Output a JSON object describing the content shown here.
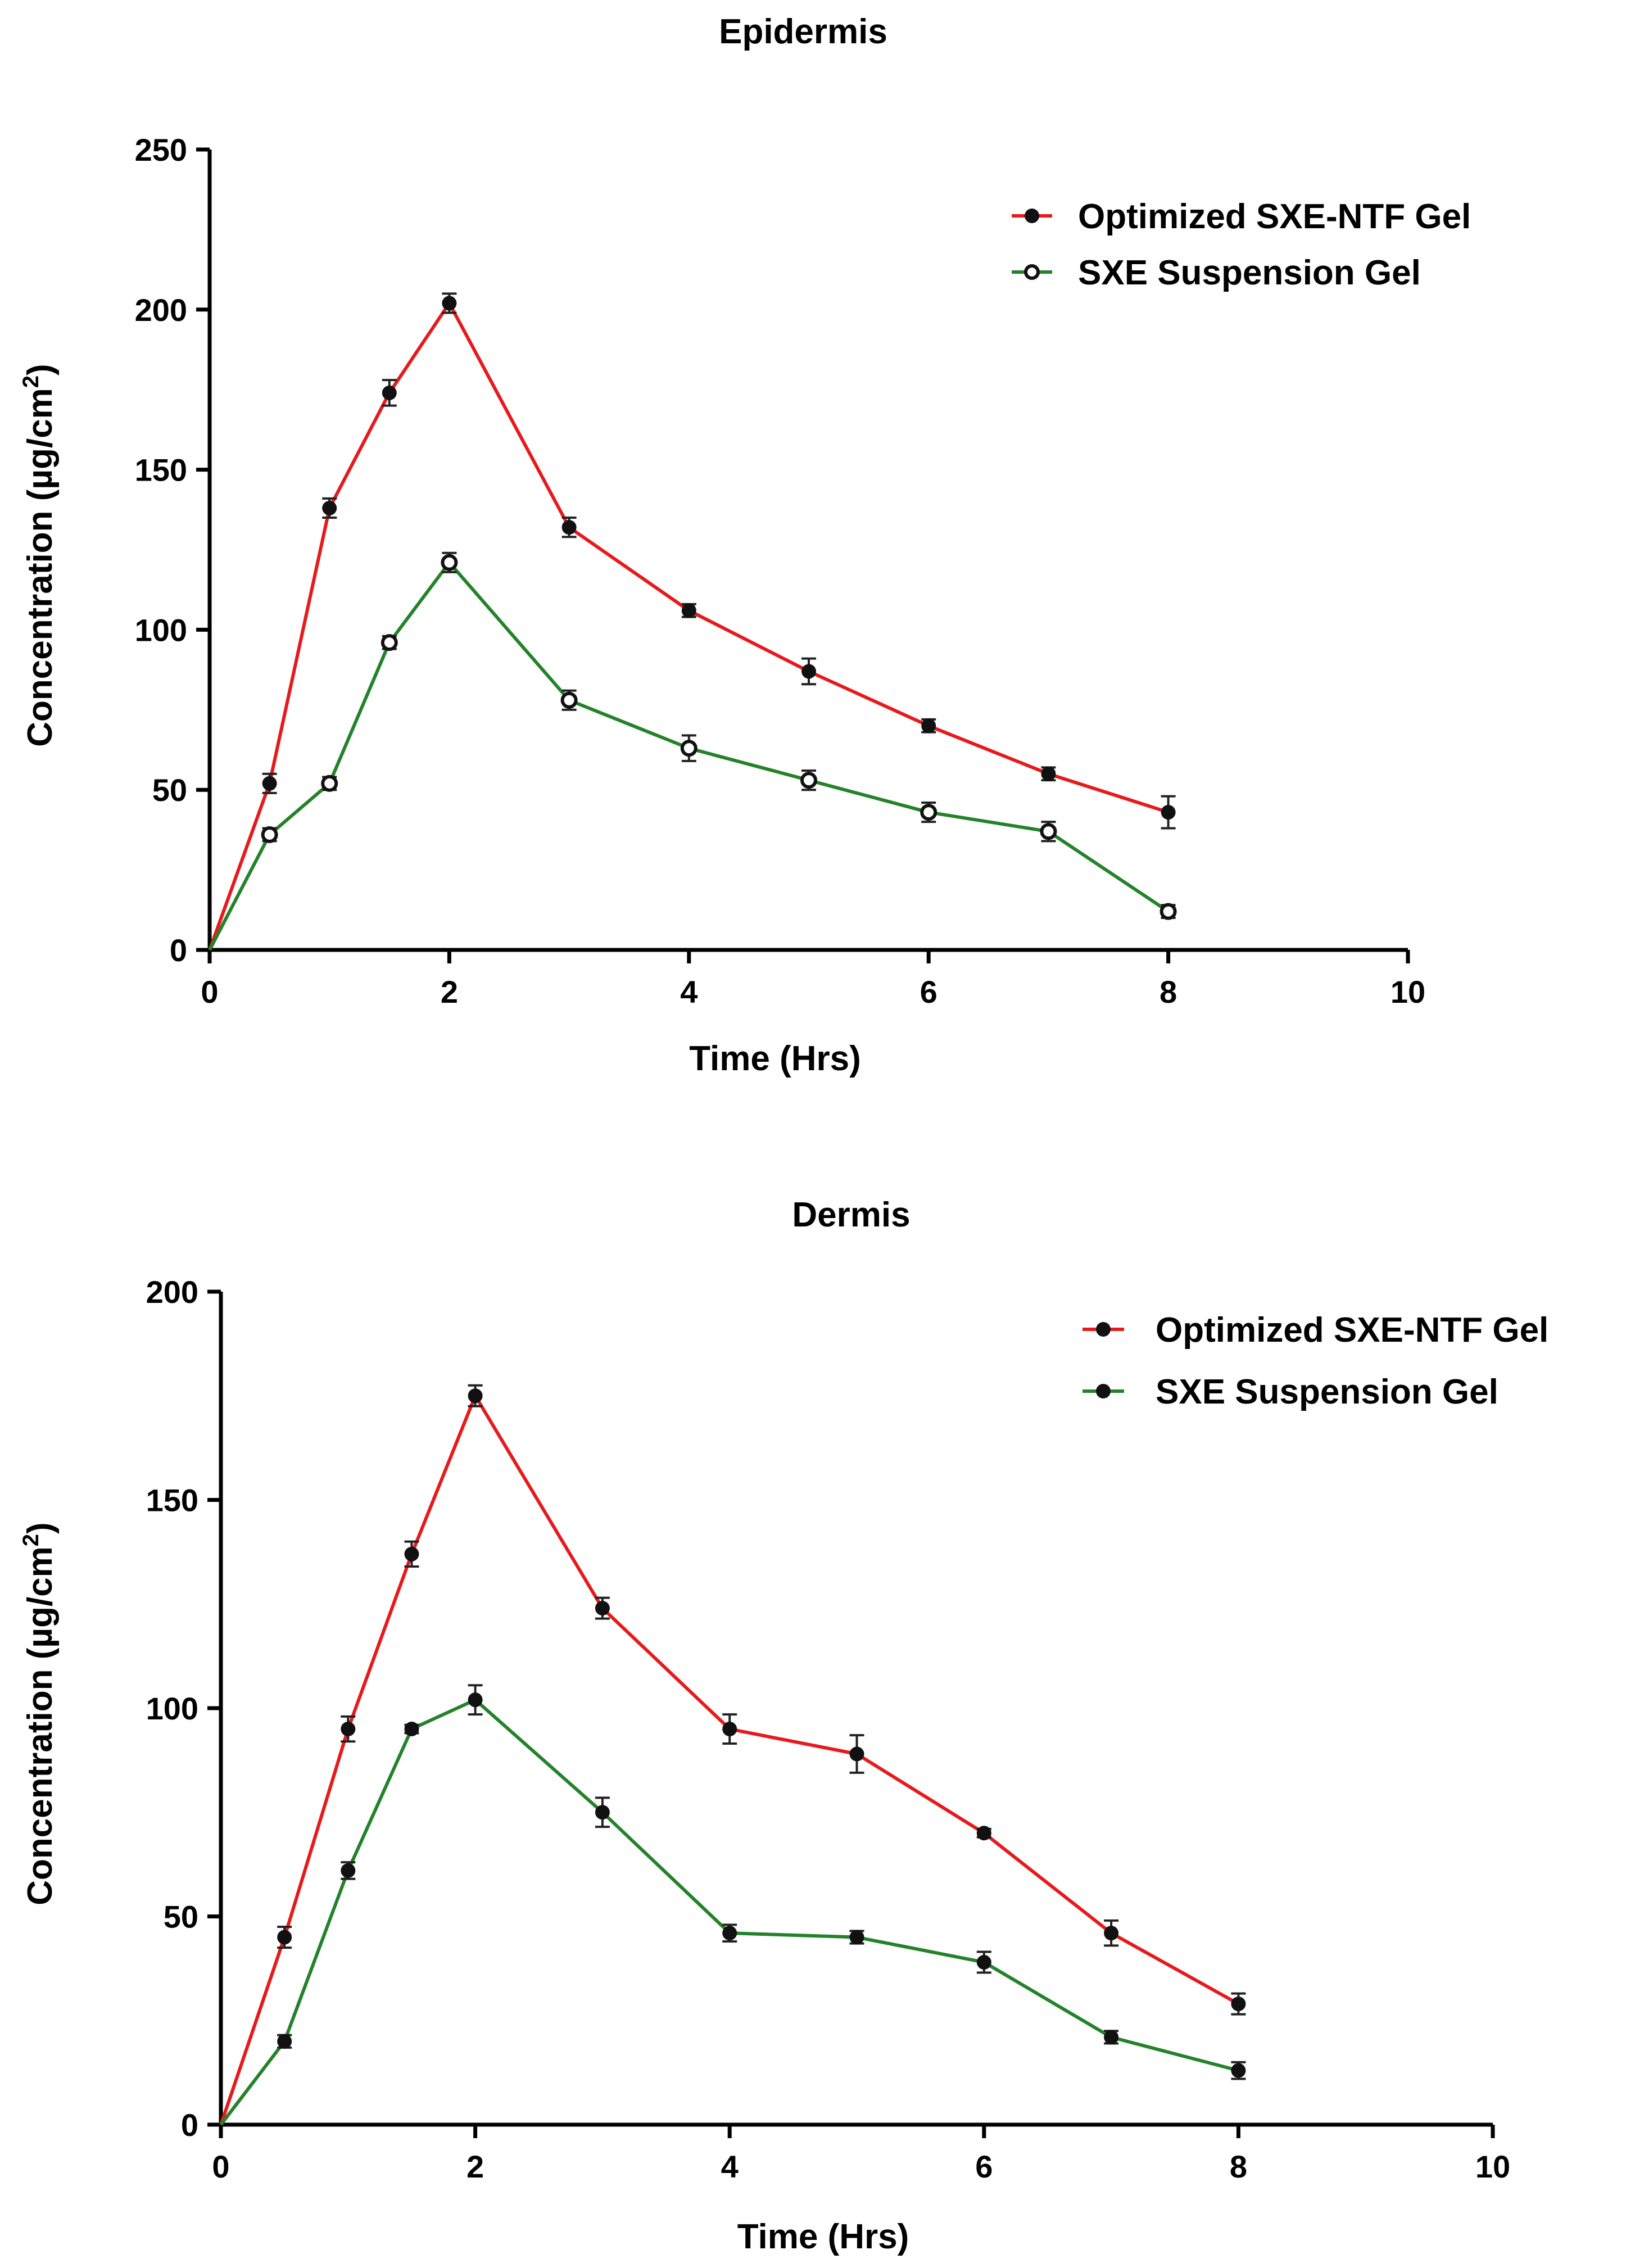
{
  "chart_data": [
    {
      "type": "line",
      "title": "Epidermis",
      "xlabel": "Time (Hrs)",
      "ylabel_main": "Concentration (µg/cm",
      "ylabel_sup": "2",
      "ylabel_close": ")",
      "xlim": [
        0,
        10
      ],
      "ylim": [
        0,
        250
      ],
      "xticks": [
        0,
        2,
        4,
        6,
        8,
        10
      ],
      "xtick_labels": [
        "0",
        "2",
        "4",
        "6",
        "8",
        "10"
      ],
      "yticks": [
        0,
        50,
        100,
        150,
        200,
        250
      ],
      "ytick_labels": [
        "0",
        "50",
        "100",
        "150",
        "200",
        "250"
      ],
      "legend_position": "top-right",
      "series": [
        {
          "name": "Optimized SXE-NTF Gel",
          "color": "#e8191c",
          "marker": "filled-circle",
          "x": [
            0,
            0.5,
            1,
            1.5,
            2,
            3,
            4,
            5,
            6,
            7,
            8
          ],
          "y": [
            0,
            52,
            138,
            174,
            202,
            132,
            106,
            87,
            70,
            55,
            43
          ],
          "err": [
            0,
            3,
            3,
            4,
            3,
            3,
            2,
            4,
            2,
            2,
            5
          ]
        },
        {
          "name": "SXE Suspension  Gel",
          "color": "#23822a",
          "marker": "open-circle",
          "x": [
            0,
            0.5,
            1,
            1.5,
            2,
            3,
            4,
            5,
            6,
            7,
            8
          ],
          "y": [
            0,
            36,
            52,
            96,
            121,
            78,
            63,
            53,
            43,
            37,
            12
          ],
          "err": [
            0,
            2,
            2,
            2,
            3,
            3,
            4,
            3,
            3,
            3,
            2
          ]
        }
      ]
    },
    {
      "type": "line",
      "title": "Dermis",
      "xlabel": "Time (Hrs)",
      "ylabel_main": "Concentration (µg/cm",
      "ylabel_sup": "2",
      "ylabel_close": ")",
      "xlim": [
        0,
        10
      ],
      "ylim": [
        0,
        200
      ],
      "xticks": [
        0,
        2,
        4,
        6,
        8,
        10
      ],
      "xtick_labels": [
        "0",
        "2",
        "4",
        "6",
        "8",
        "10"
      ],
      "yticks": [
        0,
        50,
        100,
        150,
        200
      ],
      "ytick_labels": [
        "0",
        "50",
        "100",
        "150",
        "200"
      ],
      "legend_position": "top-right",
      "series": [
        {
          "name": "Optimized SXE-NTF Gel",
          "color": "#e8191c",
          "marker": "filled-circle",
          "x": [
            0,
            0.5,
            1,
            1.5,
            2,
            3,
            4,
            5,
            6,
            7,
            8
          ],
          "y": [
            0,
            45,
            95,
            137,
            175,
            124,
            95,
            89,
            70,
            46,
            29
          ],
          "err": [
            0,
            2.5,
            3,
            3,
            2.5,
            2.5,
            3.5,
            4.5,
            1,
            3,
            2.5
          ]
        },
        {
          "name": "SXE Suspension Gel",
          "color": "#23822a",
          "marker": "filled-circle",
          "x": [
            0,
            0.5,
            1,
            1.5,
            2,
            3,
            4,
            5,
            6,
            7,
            8
          ],
          "y": [
            0,
            20,
            61,
            95,
            102,
            75,
            46,
            45,
            39,
            21,
            13
          ],
          "err": [
            0,
            1.5,
            2,
            1,
            3.5,
            3.5,
            2,
            1.5,
            2.5,
            1.5,
            2
          ]
        }
      ]
    }
  ]
}
